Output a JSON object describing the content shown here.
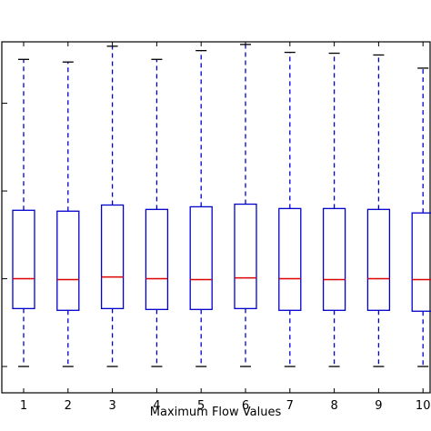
{
  "chart_data": {
    "type": "boxplot",
    "title": "",
    "xlabel": "Maximum Flow Values",
    "ylabel": "",
    "categories": [
      "1",
      "2",
      "3",
      "4",
      "5",
      "6",
      "7",
      "8",
      "9",
      "10"
    ],
    "boxes": [
      {
        "label": "1",
        "whisker_low": 0.0,
        "q1": 0.66,
        "median": 1.0,
        "q3": 1.78,
        "whisker_high": 3.5
      },
      {
        "label": "2",
        "whisker_low": 0.0,
        "q1": 0.64,
        "median": 0.99,
        "q3": 1.77,
        "whisker_high": 3.47
      },
      {
        "label": "3",
        "whisker_low": 0.0,
        "q1": 0.66,
        "median": 1.02,
        "q3": 1.84,
        "whisker_high": 3.65
      },
      {
        "label": "4",
        "whisker_low": 0.0,
        "q1": 0.65,
        "median": 1.0,
        "q3": 1.79,
        "whisker_high": 3.5
      },
      {
        "label": "5",
        "whisker_low": 0.0,
        "q1": 0.65,
        "median": 0.99,
        "q3": 1.82,
        "whisker_high": 3.6
      },
      {
        "label": "6",
        "whisker_low": 0.0,
        "q1": 0.66,
        "median": 1.01,
        "q3": 1.85,
        "whisker_high": 3.67
      },
      {
        "label": "7",
        "whisker_low": 0.0,
        "q1": 0.64,
        "median": 1.0,
        "q3": 1.8,
        "whisker_high": 3.58
      },
      {
        "label": "8",
        "whisker_low": 0.0,
        "q1": 0.64,
        "median": 0.99,
        "q3": 1.8,
        "whisker_high": 3.57
      },
      {
        "label": "9",
        "whisker_low": 0.0,
        "q1": 0.64,
        "median": 1.0,
        "q3": 1.79,
        "whisker_high": 3.55
      },
      {
        "label": "10",
        "whisker_low": 0.0,
        "q1": 0.63,
        "median": 0.99,
        "q3": 1.75,
        "whisker_high": 3.4
      }
    ],
    "ylim": [
      -0.3,
      3.7
    ],
    "yticks": [
      0,
      1,
      2,
      3
    ],
    "grid": false,
    "colors": {
      "box": "#0000cc",
      "whisker": "#0000cc",
      "median": "#dd0000",
      "cap": "#000000",
      "axis": "#000000"
    }
  }
}
